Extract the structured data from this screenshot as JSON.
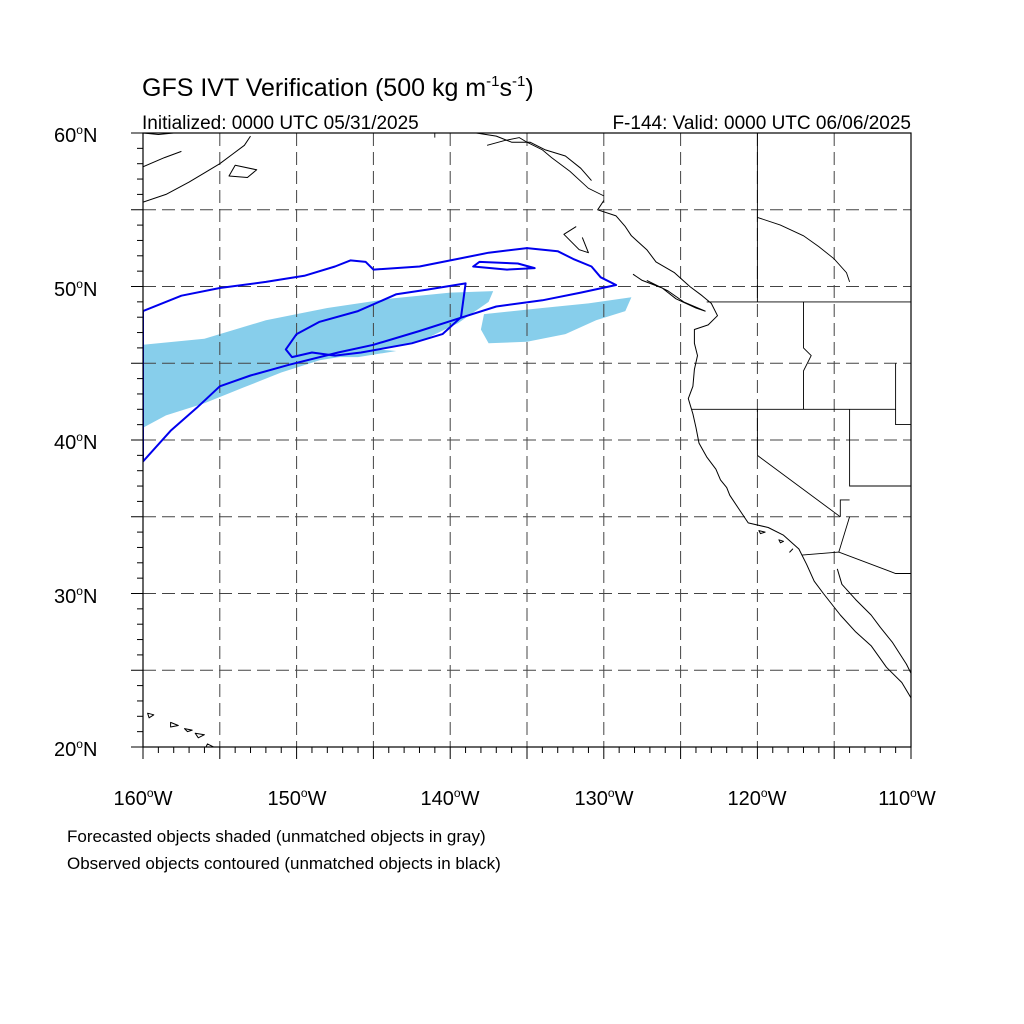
{
  "title": {
    "main": "GFS IVT Verification (500 kg m",
    "exp1": "-1",
    "mid": "s",
    "exp2": "-1",
    "close": ")"
  },
  "initialized": "Initialized: 0000 UTC 05/31/2025",
  "valid": "F-144: Valid: 0000 UTC 06/06/2025",
  "lat_labels": [
    "60",
    "50",
    "40",
    "30",
    "20"
  ],
  "lat_suffix": "N",
  "lon_labels": [
    "160",
    "150",
    "140",
    "130",
    "120",
    "110"
  ],
  "lon_suffix": "W",
  "degree": "o",
  "notes": [
    "Forecasted objects shaded (unmatched objects in gray)",
    "Observed objects contoured (unmatched objects in black)"
  ],
  "map": {
    "lon_range": [
      -160,
      -110
    ],
    "lat_range": [
      20,
      60
    ],
    "grid_lon": [
      -155,
      -150,
      -145,
      -140,
      -135,
      -130,
      -125,
      -120,
      -115
    ],
    "grid_lat": [
      25,
      30,
      35,
      40,
      45,
      50,
      55
    ],
    "colors": {
      "forecast_fill": "#87ceeb",
      "observed_contour": "#0000ee",
      "coast": "#000000",
      "grid": "#444444"
    },
    "forecast_objects": [
      [
        [
          -160,
          46.2
        ],
        [
          -156,
          46.6
        ],
        [
          -152,
          47.8
        ],
        [
          -148,
          48.6
        ],
        [
          -144,
          49.2
        ],
        [
          -140,
          49.6
        ],
        [
          -137.2,
          49.7
        ],
        [
          -137.5,
          49.0
        ],
        [
          -139.5,
          47.6
        ],
        [
          -142,
          46.4
        ],
        [
          -146,
          45.6
        ],
        [
          -148.5,
          45.2
        ],
        [
          -151,
          44.4
        ],
        [
          -153.5,
          43.4
        ],
        [
          -156,
          42.4
        ],
        [
          -158.5,
          41.6
        ],
        [
          -160,
          40.8
        ]
      ],
      [
        [
          -137.8,
          48.2
        ],
        [
          -134,
          48.6
        ],
        [
          -131,
          48.9
        ],
        [
          -128.2,
          49.3
        ],
        [
          -128.6,
          48.4
        ],
        [
          -130.5,
          47.8
        ],
        [
          -132.5,
          46.9
        ],
        [
          -135,
          46.4
        ],
        [
          -137.5,
          46.3
        ],
        [
          -138.0,
          47.2
        ]
      ],
      [
        [
          -149.5,
          45.8
        ],
        [
          -146,
          46.0
        ],
        [
          -143.5,
          45.8
        ],
        [
          -146,
          45.4
        ],
        [
          -149.0,
          45.4
        ]
      ]
    ],
    "observed_objects": [
      [
        [
          -160,
          48.4
        ],
        [
          -157.5,
          49.4
        ],
        [
          -155,
          49.9
        ],
        [
          -152,
          50.3
        ],
        [
          -149.5,
          50.7
        ],
        [
          -147.5,
          51.3
        ],
        [
          -146.5,
          51.7
        ],
        [
          -145.5,
          51.6
        ],
        [
          -145,
          51.1
        ],
        [
          -142,
          51.3
        ],
        [
          -139.5,
          51.8
        ],
        [
          -137.5,
          52.2
        ],
        [
          -135,
          52.5
        ],
        [
          -133,
          52.3
        ],
        [
          -132,
          51.8
        ],
        [
          -130.8,
          51.3
        ],
        [
          -130.2,
          50.6
        ],
        [
          -129.2,
          50.1
        ],
        [
          -131.5,
          49.6
        ],
        [
          -134,
          49.1
        ],
        [
          -137,
          48.7
        ],
        [
          -139.5,
          47.9
        ],
        [
          -142,
          47.1
        ],
        [
          -145,
          46.2
        ],
        [
          -147.3,
          45.7
        ],
        [
          -150.5,
          44.9
        ],
        [
          -153,
          44.2
        ],
        [
          -155,
          43.5
        ],
        [
          -156.5,
          42.1
        ],
        [
          -158.2,
          40.6
        ],
        [
          -160,
          38.6
        ]
      ],
      [
        [
          -138.5,
          51.3
        ],
        [
          -136.3,
          51.1
        ],
        [
          -134.5,
          51.2
        ],
        [
          -135.6,
          51.5
        ],
        [
          -138.1,
          51.6
        ]
      ],
      [
        [
          -139.0,
          50.2
        ],
        [
          -141.5,
          49.8
        ],
        [
          -143.5,
          49.5
        ],
        [
          -146.0,
          48.4
        ],
        [
          -148.5,
          47.7
        ],
        [
          -150.0,
          46.9
        ],
        [
          -150.7,
          45.9
        ],
        [
          -150.3,
          45.4
        ],
        [
          -149.0,
          45.7
        ],
        [
          -147.5,
          45.5
        ],
        [
          -145.8,
          45.7
        ],
        [
          -142.5,
          46.3
        ],
        [
          -140.5,
          46.9
        ],
        [
          -139.3,
          48.0
        ]
      ]
    ],
    "coastlines": [
      [
        [
          -130.8,
          56.9
        ],
        [
          -131.5,
          57.7
        ],
        [
          -132.5,
          58.5
        ],
        [
          -133.8,
          58.9
        ],
        [
          -134.8,
          59.4
        ],
        [
          -136,
          59.4
        ],
        [
          -137,
          59.8
        ],
        [
          -138.3,
          60
        ]
      ],
      [
        [
          -130.0,
          55.6
        ],
        [
          -130.4,
          55.0
        ],
        [
          -129.2,
          54.6
        ],
        [
          -128.6,
          53.9
        ],
        [
          -128.2,
          53.3
        ],
        [
          -127.2,
          52.4
        ],
        [
          -126.6,
          51.6
        ],
        [
          -125.4,
          50.9
        ],
        [
          -124.4,
          50.0
        ],
        [
          -123.6,
          49.4
        ],
        [
          -123.0,
          48.9
        ],
        [
          -122.6,
          48.1
        ],
        [
          -123.2,
          47.5
        ],
        [
          -124.1,
          47.2
        ],
        [
          -124.1,
          46.3
        ],
        [
          -123.9,
          45.5
        ],
        [
          -124.1,
          44.6
        ],
        [
          -124.2,
          43.5
        ],
        [
          -124.5,
          42.7
        ],
        [
          -124.2,
          41.7
        ],
        [
          -124.0,
          40.8
        ],
        [
          -123.8,
          39.8
        ],
        [
          -123.3,
          38.9
        ],
        [
          -122.7,
          38.1
        ],
        [
          -122.4,
          37.4
        ],
        [
          -122.0,
          36.9
        ],
        [
          -121.8,
          36.4
        ],
        [
          -121.2,
          35.5
        ],
        [
          -120.6,
          34.6
        ],
        [
          -119.3,
          34.3
        ],
        [
          -118.3,
          33.8
        ],
        [
          -117.3,
          32.9
        ],
        [
          -116.8,
          31.9
        ],
        [
          -116.3,
          30.8
        ],
        [
          -115.7,
          30.0
        ],
        [
          -114.6,
          28.6
        ],
        [
          -113.6,
          27.5
        ],
        [
          -112.6,
          26.6
        ],
        [
          -111.6,
          25.2
        ],
        [
          -110.6,
          24.2
        ],
        [
          -110,
          23.2
        ]
      ],
      [
        [
          -128.1,
          50.8
        ],
        [
          -127.5,
          50.4
        ],
        [
          -126.2,
          49.9
        ],
        [
          -125.3,
          49.2
        ],
        [
          -124.0,
          48.6
        ],
        [
          -123.4,
          48.4
        ],
        [
          -124.8,
          49.0
        ],
        [
          -125.8,
          49.7
        ],
        [
          -127.2,
          50.4
        ]
      ],
      [
        [
          -131.8,
          53.9
        ],
        [
          -132.6,
          53.4
        ],
        [
          -131.6,
          52.4
        ],
        [
          -131.0,
          52.2
        ],
        [
          -131.4,
          53.2
        ]
      ],
      [
        [
          -114.8,
          31.6
        ],
        [
          -114.5,
          30.6
        ],
        [
          -113.6,
          29.6
        ],
        [
          -112.6,
          28.6
        ],
        [
          -112.0,
          27.8
        ],
        [
          -111.2,
          26.8
        ],
        [
          -110.3,
          25.4
        ],
        [
          -110,
          24.8
        ]
      ],
      [
        [
          -160,
          55.5
        ],
        [
          -158.5,
          56.0
        ],
        [
          -157.0,
          56.8
        ],
        [
          -156.0,
          57.4
        ],
        [
          -155.0,
          58.0
        ],
        [
          -154.2,
          58.6
        ],
        [
          -153.4,
          59.2
        ],
        [
          -153.0,
          59.8
        ]
      ],
      [
        [
          -160,
          57.8
        ],
        [
          -158.6,
          58.4
        ],
        [
          -157.5,
          58.8
        ]
      ],
      [
        [
          -160,
          60
        ],
        [
          -159.0,
          59.9
        ],
        [
          -158.0,
          60
        ]
      ],
      [
        [
          -161,
          56
        ],
        [
          -160,
          55.2
        ]
      ]
    ],
    "islands": [
      [
        [
          -155.8,
          20.2
        ],
        [
          -155.0,
          19.8
        ],
        [
          -154.8,
          19.5
        ],
        [
          -155.9,
          19.1
        ],
        [
          -155.9,
          20.0
        ]
      ],
      [
        [
          -156.6,
          20.9
        ],
        [
          -156.0,
          20.8
        ],
        [
          -156.4,
          20.6
        ]
      ],
      [
        [
          -157.3,
          21.2
        ],
        [
          -156.8,
          21.1
        ],
        [
          -157.1,
          21.0
        ]
      ],
      [
        [
          -158.2,
          21.6
        ],
        [
          -157.7,
          21.4
        ],
        [
          -158.2,
          21.3
        ]
      ],
      [
        [
          -159.7,
          22.2
        ],
        [
          -159.3,
          22.1
        ],
        [
          -159.6,
          21.9
        ]
      ],
      [
        [
          -154.0,
          57.9
        ],
        [
          -152.6,
          57.6
        ],
        [
          -153.2,
          57.1
        ],
        [
          -154.4,
          57.2
        ]
      ],
      [
        [
          -118.6,
          33.5
        ],
        [
          -118.3,
          33.4
        ],
        [
          -118.5,
          33.3
        ]
      ],
      [
        [
          -119.9,
          34.1
        ],
        [
          -119.5,
          34.0
        ],
        [
          -119.8,
          33.9
        ]
      ],
      [
        [
          -117.7,
          32.9
        ],
        [
          -117.9,
          32.7
        ]
      ]
    ],
    "borders": [
      [
        [
          -123.3,
          49.0
        ],
        [
          -110,
          49.0
        ]
      ],
      [
        [
          -117.0,
          49.0
        ],
        [
          -117.0,
          46.0
        ],
        [
          -116.5,
          45.5
        ],
        [
          -117.0,
          44.5
        ],
        [
          -117.0,
          42.0
        ]
      ],
      [
        [
          -124.3,
          42.0
        ],
        [
          -111.0,
          42.0
        ]
      ],
      [
        [
          -111.0,
          45.0
        ],
        [
          -111.0,
          41.0
        ],
        [
          -110,
          41.0
        ]
      ],
      [
        [
          -120.0,
          42.0
        ],
        [
          -120.0,
          39.0
        ],
        [
          -114.6,
          35.0
        ]
      ],
      [
        [
          -114.6,
          35.0
        ],
        [
          -114.6,
          36.1
        ],
        [
          -114.0,
          36.1
        ]
      ],
      [
        [
          -114.0,
          42.0
        ],
        [
          -114.0,
          37.0
        ],
        [
          -110,
          37.0
        ]
      ],
      [
        [
          -117.1,
          32.5
        ],
        [
          -114.7,
          32.7
        ],
        [
          -111.0,
          31.3
        ],
        [
          -110,
          31.3
        ]
      ],
      [
        [
          -114.7,
          32.7
        ],
        [
          -114.0,
          35.0
        ]
      ],
      [
        [
          -120.0,
          60
        ],
        [
          -120.0,
          49.0
        ]
      ],
      [
        [
          -120,
          54.5
        ],
        [
          -118.5,
          54.0
        ],
        [
          -117.0,
          53.3
        ],
        [
          -116,
          52.6
        ],
        [
          -115,
          51.8
        ],
        [
          -114.2,
          50.9
        ],
        [
          -114.0,
          50.3
        ]
      ],
      [
        [
          -141.0,
          60
        ],
        [
          -141.0,
          59.7
        ]
      ],
      [
        [
          -137.6,
          59.2
        ],
        [
          -136.5,
          59.5
        ],
        [
          -135.5,
          59.7
        ],
        [
          -135.0,
          59.4
        ],
        [
          -134.0,
          58.9
        ],
        [
          -133.4,
          58.4
        ],
        [
          -132.2,
          57.5
        ],
        [
          -131.0,
          56.4
        ],
        [
          -130.0,
          55.9
        ]
      ]
    ]
  }
}
